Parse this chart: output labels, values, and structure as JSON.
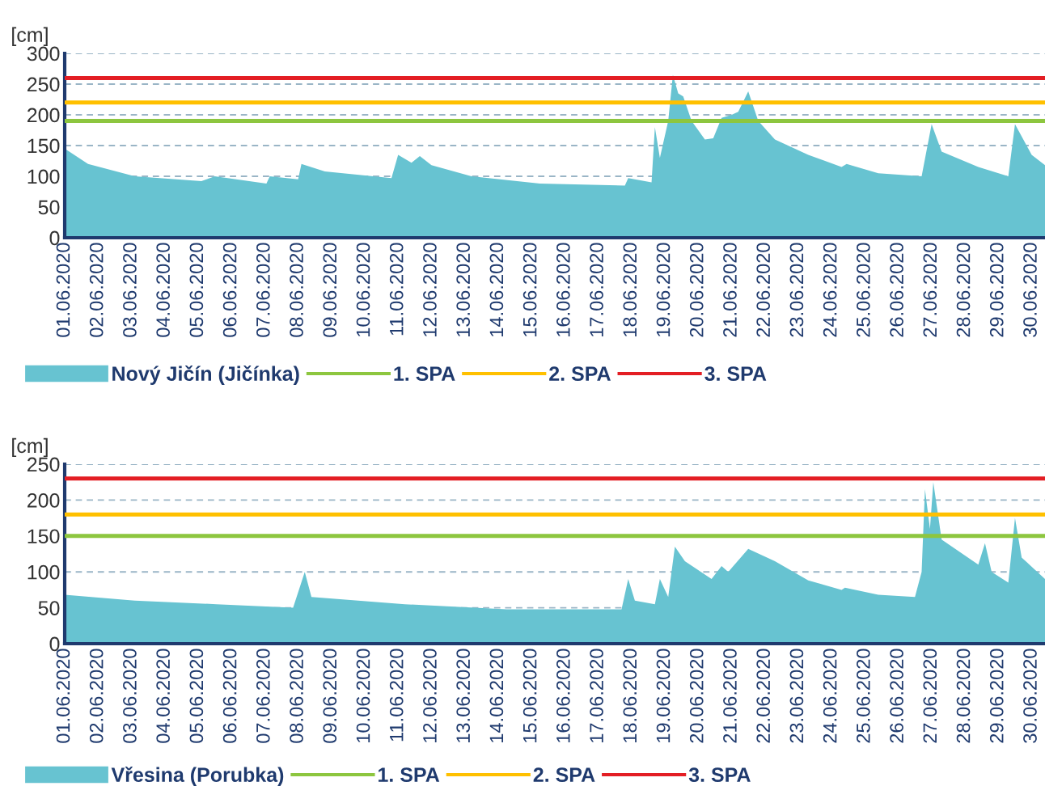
{
  "chart_data": [
    {
      "type": "area",
      "ylabel": "[cm]",
      "x": [
        "2020-06-01T00:00",
        "2020-06-01T16:48",
        "2020-06-03T02:24",
        "2020-06-05T02:24",
        "2020-06-05T12:00",
        "2020-06-07T01:12",
        "2020-06-07T03:36",
        "2020-06-08T00:00",
        "2020-06-08T02:24",
        "2020-06-08T19:12",
        "2020-06-10T19:12",
        "2020-06-11T00:00",
        "2020-06-11T09:36",
        "2020-06-11T15:36",
        "2020-06-12T00:00",
        "2020-06-13T04:48",
        "2020-06-15T06:00",
        "2020-06-17T19:12",
        "2020-06-17T21:36",
        "2020-06-18T14:24",
        "2020-06-18T16:48",
        "2020-06-18T20:24",
        "2020-06-19T02:24",
        "2020-06-19T05:46",
        "2020-06-19T09:36",
        "2020-06-19T13:12",
        "2020-06-19T19:12",
        "2020-06-20T04:48",
        "2020-06-20T10:48",
        "2020-06-20T16:48",
        "2020-06-21T00:00",
        "2020-06-21T04:48",
        "2020-06-21T12:00",
        "2020-06-21T19:12",
        "2020-06-22T07:12",
        "2020-06-23T07:12",
        "2020-06-24T07:12",
        "2020-06-24T10:48",
        "2020-06-25T09:36",
        "2020-06-26T16:48",
        "2020-06-27T00:00",
        "2020-06-27T07:12",
        "2020-06-28T09:36",
        "2020-06-29T07:12",
        "2020-06-29T12:00",
        "2020-06-30T00:00",
        "2020-06-30T09:36"
      ],
      "series": [
        {
          "name": "Nový Jičín (Jičínka)",
          "color": "#67c3d1",
          "values": [
            145,
            120,
            100,
            92,
            100,
            88,
            100,
            95,
            120,
            108,
            97,
            135,
            122,
            133,
            118,
            100,
            88,
            85,
            97,
            90,
            180,
            130,
            190,
            265,
            235,
            230,
            190,
            160,
            162,
            195,
            200,
            205,
            238,
            190,
            160,
            135,
            115,
            120,
            105,
            100,
            185,
            140,
            115,
            100,
            185,
            135,
            118
          ]
        }
      ],
      "ref_lines": [
        {
          "axis": "y",
          "value": 190,
          "label": "1. SPA",
          "color": "#8dc63f"
        },
        {
          "axis": "y",
          "value": 220,
          "label": "2. SPA",
          "color": "#ffc000"
        },
        {
          "axis": "y",
          "value": 260,
          "label": "3. SPA",
          "color": "#e31e24"
        }
      ],
      "xlim": [
        "2020-06-01T00:00",
        "2020-06-30T09:36"
      ],
      "xticks": [
        {
          "value": "2020-06-01",
          "label": "01.06.2020"
        },
        {
          "value": "2020-06-02",
          "label": "02.06.2020"
        },
        {
          "value": "2020-06-03",
          "label": "03.06.2020"
        },
        {
          "value": "2020-06-04",
          "label": "04.06.2020"
        },
        {
          "value": "2020-06-05",
          "label": "05.06.2020"
        },
        {
          "value": "2020-06-06",
          "label": "06.06.2020"
        },
        {
          "value": "2020-06-07",
          "label": "07.06.2020"
        },
        {
          "value": "2020-06-08",
          "label": "08.06.2020"
        },
        {
          "value": "2020-06-09",
          "label": "09.06.2020"
        },
        {
          "value": "2020-06-10",
          "label": "10.06.2020"
        },
        {
          "value": "2020-06-11",
          "label": "11.06.2020"
        },
        {
          "value": "2020-06-12",
          "label": "12.06.2020"
        },
        {
          "value": "2020-06-13",
          "label": "13.06.2020"
        },
        {
          "value": "2020-06-14",
          "label": "14.06.2020"
        },
        {
          "value": "2020-06-15",
          "label": "15.06.2020"
        },
        {
          "value": "2020-06-16",
          "label": "16.06.2020"
        },
        {
          "value": "2020-06-17",
          "label": "17.06.2020"
        },
        {
          "value": "2020-06-18",
          "label": "18.06.2020"
        },
        {
          "value": "2020-06-19",
          "label": "19.06.2020"
        },
        {
          "value": "2020-06-20",
          "label": "20.06.2020"
        },
        {
          "value": "2020-06-21",
          "label": "21.06.2020"
        },
        {
          "value": "2020-06-22",
          "label": "22.06.2020"
        },
        {
          "value": "2020-06-23",
          "label": "23.06.2020"
        },
        {
          "value": "2020-06-24",
          "label": "24.06.2020"
        },
        {
          "value": "2020-06-25",
          "label": "25.06.2020"
        },
        {
          "value": "2020-06-26",
          "label": "26.06.2020"
        },
        {
          "value": "2020-06-27",
          "label": "27.06.2020"
        },
        {
          "value": "2020-06-28",
          "label": "28.06.2020"
        },
        {
          "value": "2020-06-29",
          "label": "29.06.2020"
        },
        {
          "value": "2020-06-30",
          "label": "30.06.2020"
        }
      ],
      "ylim": [
        0,
        300
      ],
      "yticks": [
        0,
        50,
        100,
        150,
        200,
        250,
        300
      ],
      "grid": "y",
      "legend": "bottom"
    },
    {
      "type": "area",
      "ylabel": "[cm]",
      "x": [
        "2020-06-01T00:00",
        "2020-06-03T02:24",
        "2020-06-05T13:12",
        "2020-06-07T20:24",
        "2020-06-08T04:48",
        "2020-06-08T09:36",
        "2020-06-11T04:48",
        "2020-06-14T06:00",
        "2020-06-17T16:48",
        "2020-06-17T21:36",
        "2020-06-18T02:24",
        "2020-06-18T16:48",
        "2020-06-18T20:24",
        "2020-06-19T02:24",
        "2020-06-19T07:12",
        "2020-06-19T14:24",
        "2020-06-20T09:36",
        "2020-06-20T16:48",
        "2020-06-20T21:36",
        "2020-06-21T12:00",
        "2020-06-22T07:12",
        "2020-06-23T07:12",
        "2020-06-24T07:12",
        "2020-06-24T09:36",
        "2020-06-25T09:36",
        "2020-06-26T12:00",
        "2020-06-26T16:48",
        "2020-06-26T19:12",
        "2020-06-26T22:48",
        "2020-06-27T01:12",
        "2020-06-27T07:12",
        "2020-06-28T09:36",
        "2020-06-28T14:24",
        "2020-06-28T19:12",
        "2020-06-29T07:12",
        "2020-06-29T12:00",
        "2020-06-29T16:48",
        "2020-06-30T09:36"
      ],
      "series": [
        {
          "name": "Vřesina (Porubka)",
          "color": "#67c3d1",
          "values": [
            68,
            60,
            55,
            50,
            100,
            65,
            55,
            48,
            48,
            90,
            60,
            55,
            90,
            65,
            135,
            115,
            90,
            108,
            100,
            132,
            115,
            88,
            75,
            78,
            68,
            65,
            100,
            215,
            160,
            225,
            145,
            110,
            140,
            100,
            85,
            175,
            120,
            90
          ]
        }
      ],
      "ref_lines": [
        {
          "axis": "y",
          "value": 150,
          "label": "1. SPA",
          "color": "#8dc63f"
        },
        {
          "axis": "y",
          "value": 180,
          "label": "2. SPA",
          "color": "#ffc000"
        },
        {
          "axis": "y",
          "value": 230,
          "label": "3. SPA",
          "color": "#e31e24"
        }
      ],
      "xlim": [
        "2020-06-01T00:00",
        "2020-06-30T09:36"
      ],
      "xticks": [
        {
          "value": "2020-06-01",
          "label": "01.06.2020"
        },
        {
          "value": "2020-06-02",
          "label": "02.06.2020"
        },
        {
          "value": "2020-06-03",
          "label": "03.06.2020"
        },
        {
          "value": "2020-06-04",
          "label": "04.06.2020"
        },
        {
          "value": "2020-06-05",
          "label": "05.06.2020"
        },
        {
          "value": "2020-06-06",
          "label": "06.06.2020"
        },
        {
          "value": "2020-06-07",
          "label": "07.06.2020"
        },
        {
          "value": "2020-06-08",
          "label": "08.06.2020"
        },
        {
          "value": "2020-06-09",
          "label": "09.06.2020"
        },
        {
          "value": "2020-06-10",
          "label": "10.06.2020"
        },
        {
          "value": "2020-06-11",
          "label": "11.06.2020"
        },
        {
          "value": "2020-06-12",
          "label": "12.06.2020"
        },
        {
          "value": "2020-06-13",
          "label": "13.06.2020"
        },
        {
          "value": "2020-06-14",
          "label": "14.06.2020"
        },
        {
          "value": "2020-06-15",
          "label": "15.06.2020"
        },
        {
          "value": "2020-06-16",
          "label": "16.06.2020"
        },
        {
          "value": "2020-06-17",
          "label": "17.06.2020"
        },
        {
          "value": "2020-06-18",
          "label": "18.06.2020"
        },
        {
          "value": "2020-06-19",
          "label": "19.06.2020"
        },
        {
          "value": "2020-06-20",
          "label": "20.06.2020"
        },
        {
          "value": "2020-06-21",
          "label": "21.06.2020"
        },
        {
          "value": "2020-06-22",
          "label": "22.06.2020"
        },
        {
          "value": "2020-06-23",
          "label": "23.06.2020"
        },
        {
          "value": "2020-06-24",
          "label": "24.06.2020"
        },
        {
          "value": "2020-06-25",
          "label": "25.06.2020"
        },
        {
          "value": "2020-06-26",
          "label": "26.06.2020"
        },
        {
          "value": "2020-06-27",
          "label": "27.06.2020"
        },
        {
          "value": "2020-06-28",
          "label": "28.06.2020"
        },
        {
          "value": "2020-06-29",
          "label": "29.06.2020"
        },
        {
          "value": "2020-06-30",
          "label": "30.06.2020"
        }
      ],
      "ylim": [
        0,
        250
      ],
      "yticks": [
        0,
        50,
        100,
        150,
        200,
        250
      ],
      "grid": "y",
      "legend": "bottom"
    }
  ]
}
